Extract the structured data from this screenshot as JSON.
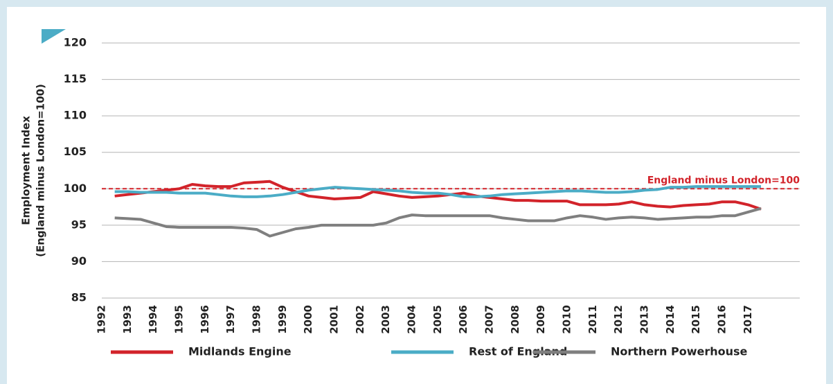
{
  "chart_data": {
    "type": "line",
    "y_label": [
      "Employment Index",
      "(England minus London=100)"
    ],
    "x": [
      1992.5,
      1993,
      1993.5,
      1994,
      1994.5,
      1995,
      1995.5,
      1996,
      1996.5,
      1997,
      1997.5,
      1998,
      1998.5,
      1999,
      1999.5,
      2000,
      2000.5,
      2001,
      2001.5,
      2002,
      2002.5,
      2003,
      2003.5,
      2004,
      2004.5,
      2005,
      2005.5,
      2006,
      2006.5,
      2007,
      2007.5,
      2008,
      2008.5,
      2009,
      2009.5,
      2010,
      2010.5,
      2011,
      2011.5,
      2012,
      2012.5,
      2013,
      2013.5,
      2014,
      2014.5,
      2015,
      2015.5,
      2016,
      2016.5,
      2017,
      2017.5
    ],
    "series": [
      {
        "name": "Midlands Engine",
        "color": "#d2232a",
        "values": [
          99.0,
          99.2,
          99.4,
          99.6,
          99.8,
          100.0,
          100.6,
          100.4,
          100.3,
          100.3,
          100.8,
          100.9,
          101.0,
          100.2,
          99.6,
          99.0,
          98.8,
          98.6,
          98.7,
          98.8,
          99.6,
          99.3,
          99.0,
          98.8,
          98.9,
          99.0,
          99.2,
          99.4,
          99.0,
          98.8,
          98.6,
          98.4,
          98.4,
          98.3,
          98.3,
          98.3,
          97.8,
          97.8,
          97.8,
          97.9,
          98.2,
          97.8,
          97.6,
          97.5,
          97.7,
          97.8,
          97.9,
          98.2,
          98.2,
          97.8,
          97.2
        ]
      },
      {
        "name": "Rest of England",
        "color": "#4bacc6",
        "values": [
          99.6,
          99.6,
          99.5,
          99.5,
          99.5,
          99.4,
          99.4,
          99.4,
          99.2,
          99.0,
          98.9,
          98.9,
          99.0,
          99.2,
          99.5,
          99.8,
          100.0,
          100.2,
          100.1,
          100.0,
          99.9,
          99.8,
          99.7,
          99.5,
          99.4,
          99.4,
          99.2,
          98.9,
          98.9,
          99.0,
          99.2,
          99.3,
          99.4,
          99.5,
          99.6,
          99.7,
          99.7,
          99.6,
          99.5,
          99.5,
          99.6,
          99.8,
          99.9,
          100.2,
          100.2,
          100.3,
          100.3,
          100.3,
          100.3,
          100.3,
          100.3
        ]
      },
      {
        "name": "Northern Powerhouse",
        "color": "#7f7f7f",
        "values": [
          96.0,
          95.9,
          95.8,
          95.3,
          94.8,
          94.7,
          94.7,
          94.7,
          94.7,
          94.7,
          94.6,
          94.4,
          93.5,
          94.0,
          94.5,
          94.7,
          95.0,
          95.0,
          95.0,
          95.0,
          95.0,
          95.3,
          96.0,
          96.4,
          96.3,
          96.3,
          96.3,
          96.3,
          96.3,
          96.3,
          96.0,
          95.8,
          95.6,
          95.6,
          95.6,
          96.0,
          96.3,
          96.1,
          95.8,
          96.0,
          96.1,
          96.0,
          95.8,
          95.9,
          96.0,
          96.1,
          96.1,
          96.3,
          96.3,
          96.8,
          97.3
        ]
      }
    ],
    "xlim": [
      1992,
      2019
    ],
    "xticks": [
      1992,
      1993,
      1994,
      1995,
      1996,
      1997,
      1998,
      1999,
      2000,
      2001,
      2002,
      2003,
      2004,
      2005,
      2006,
      2007,
      2008,
      2009,
      2010,
      2011,
      2012,
      2013,
      2014,
      2015,
      2016,
      2017
    ],
    "ylim": [
      85,
      120
    ],
    "yticks": [
      85,
      90,
      95,
      100,
      105,
      110,
      115,
      120
    ],
    "grid": true,
    "reference": {
      "value": 100,
      "label": "England minus London=100",
      "color": "#d2232a"
    },
    "legend": "bottom"
  }
}
